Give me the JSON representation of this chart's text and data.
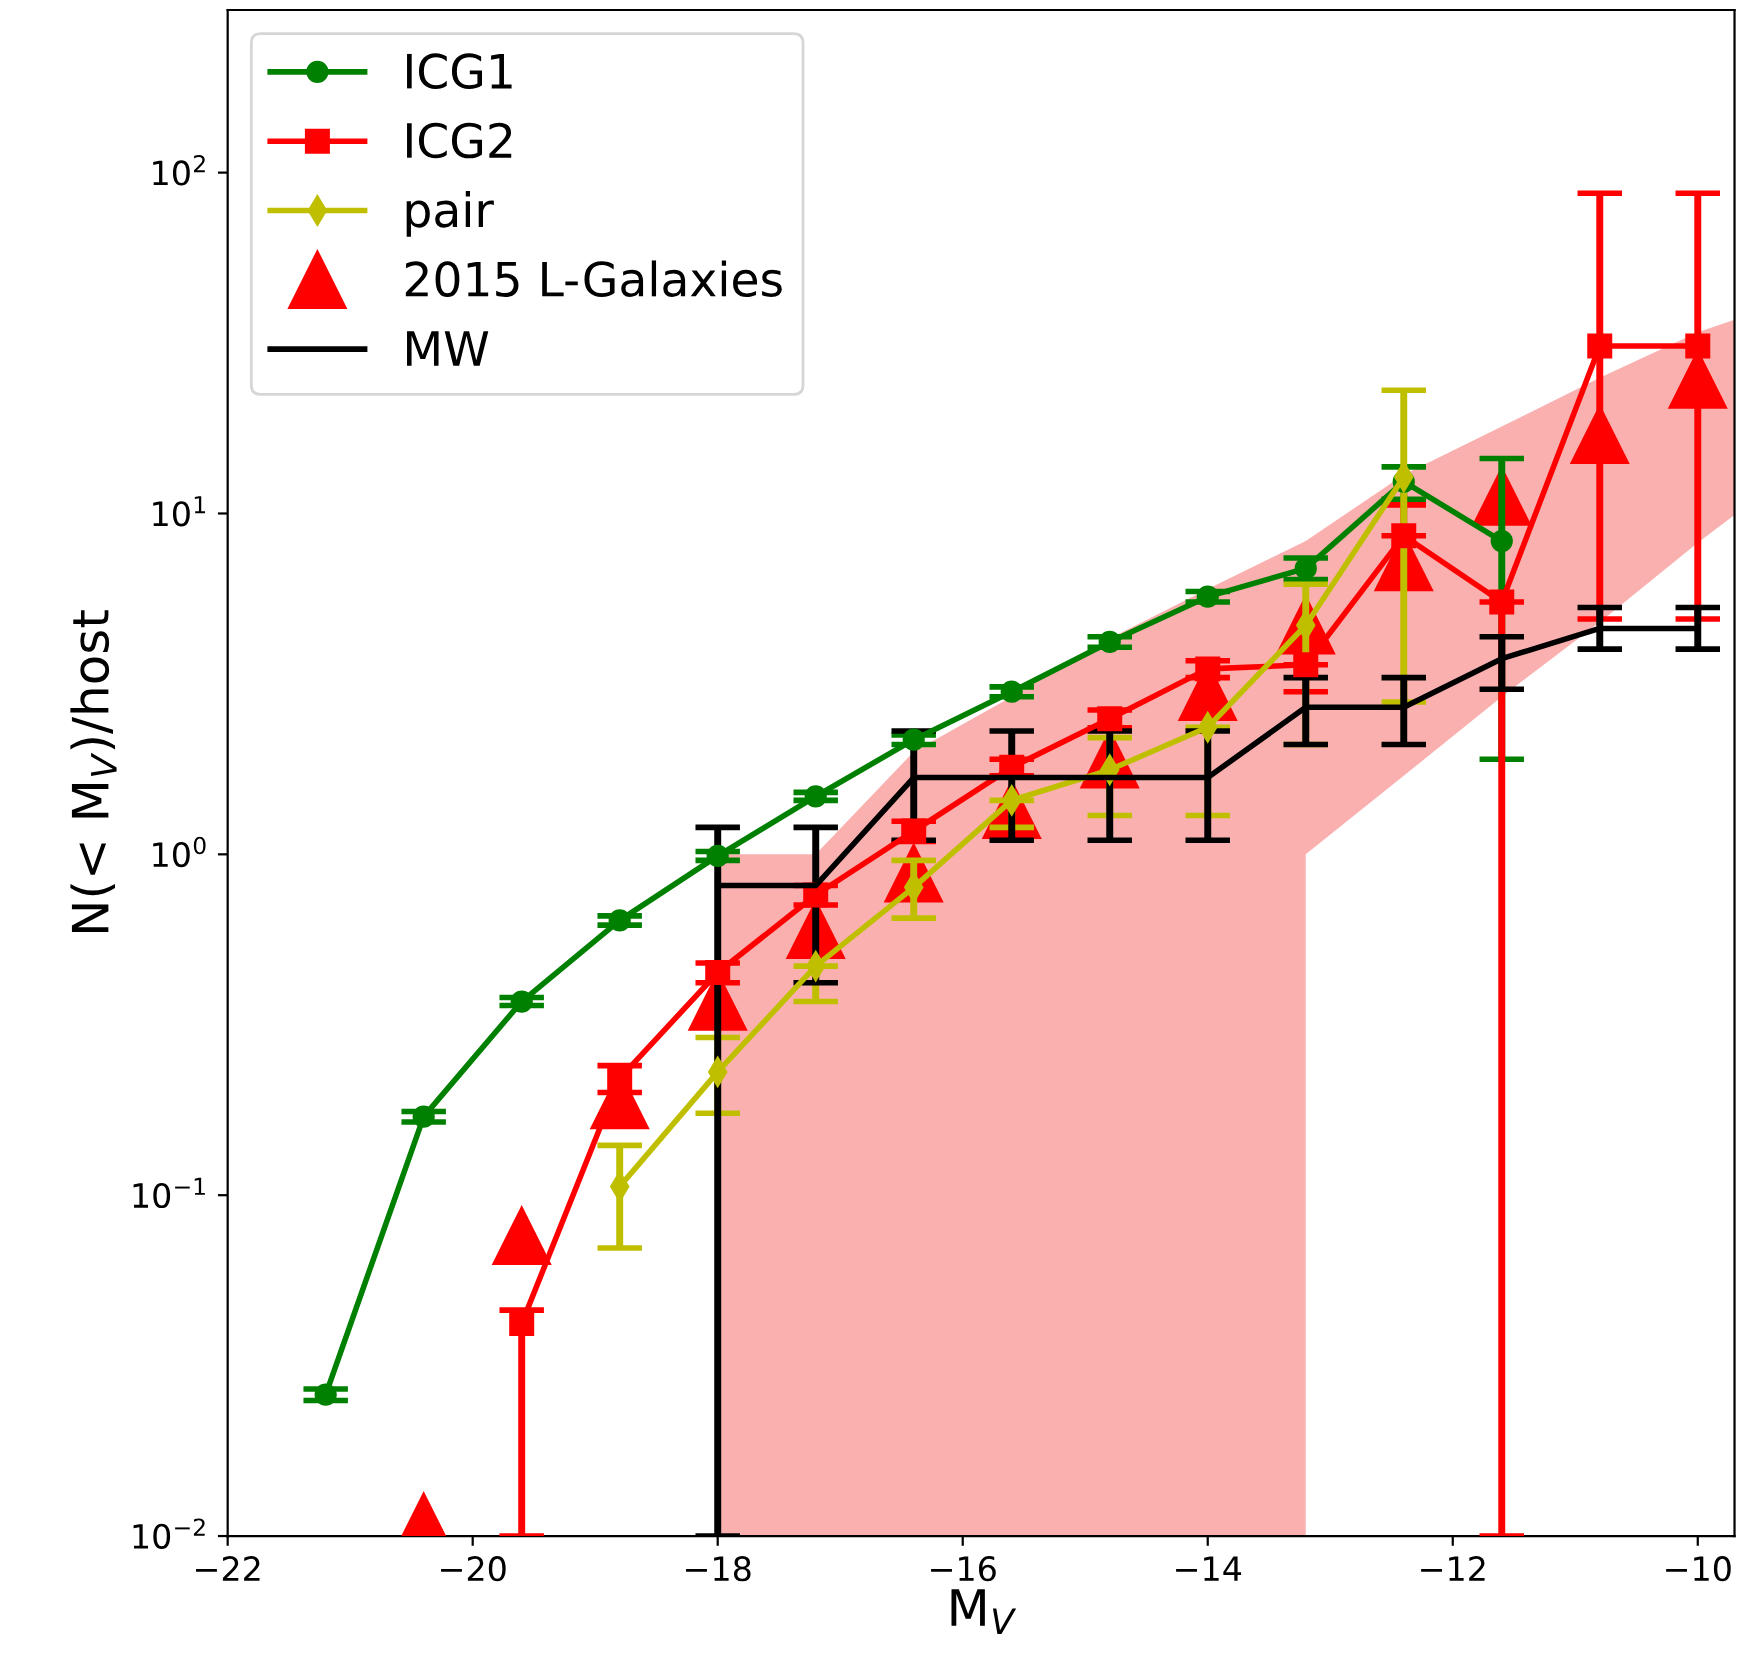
{
  "chart_data": {
    "type": "line",
    "xlabel": "M$_{V}$",
    "ylabel": "N(< M$_{V}$)/host",
    "log": "y",
    "xlim": [
      -22,
      -9.7
    ],
    "ylim": [
      0.01,
      300
    ],
    "xticks": [
      {
        "value": -22,
        "label": "−22"
      },
      {
        "value": -20,
        "label": "−20"
      },
      {
        "value": -18,
        "label": "−18"
      },
      {
        "value": -16,
        "label": "−16"
      },
      {
        "value": -14,
        "label": "−14"
      },
      {
        "value": -12,
        "label": "−12"
      },
      {
        "value": -10,
        "label": "−10"
      }
    ],
    "yticks": [
      {
        "value": 0.01,
        "label": "10$^{−2}$"
      },
      {
        "value": 0.1,
        "label": "10$^{−1}$"
      },
      {
        "value": 1,
        "label": "10$^{0}$"
      },
      {
        "value": 10,
        "label": "10$^{1}$"
      },
      {
        "value": 100,
        "label": "10$^{2}$"
      }
    ],
    "grid": false,
    "legend": "top left",
    "line_style": "solid",
    "series": [
      {
        "type": "area",
        "color": "#fbb0b0",
        "x": [
          -18,
          -17.2,
          -16.4,
          -15.6,
          -14.8,
          -14,
          -13.2,
          -13.2,
          -12.4,
          -11.6,
          -10.8,
          -10,
          -9.7
        ],
        "values": [
          null,
          null,
          null,
          null,
          null,
          null,
          null,
          null,
          null,
          null,
          null,
          null,
          null
        ],
        "lower": [
          0.01,
          0.01,
          0.01,
          0.01,
          0.01,
          0.01,
          0.01,
          1.0,
          1.7,
          2.9,
          4.8,
          8.2,
          9.9
        ],
        "upper": [
          1.0,
          1.0,
          2.0,
          2.9,
          4.3,
          6.0,
          8.3,
          8.3,
          13,
          18,
          25,
          34,
          37
        ]
      },
      {
        "name": "ICG1",
        "type": "line",
        "marker": "circle",
        "color": "#008000",
        "x": [
          -21.2,
          -20.4,
          -19.6,
          -18.8,
          -18,
          -17.2,
          -16.4,
          -15.6,
          -14.8,
          -14,
          -13.2,
          -12.4,
          -11.6
        ],
        "values": [
          0.026,
          0.17,
          0.37,
          0.64,
          0.99,
          1.48,
          2.17,
          3.0,
          4.2,
          5.7,
          6.9,
          12.4,
          8.3
        ],
        "errors": [
          0.001,
          0.006,
          0.01,
          0.02,
          0.03,
          0.04,
          0.07,
          0.1,
          0.15,
          0.2,
          0.5,
          [
            11,
            13.7
          ],
          [
            1.9,
            14.5
          ]
        ]
      },
      {
        "name": "ICG2",
        "type": "line",
        "marker": "square",
        "color": "#ff0000",
        "x": [
          -19.6,
          -18.8,
          -18,
          -17.2,
          -16.4,
          -15.6,
          -14.8,
          -14,
          -13.2,
          -12.4,
          -11.6,
          -10.8,
          -10
        ],
        "values": [
          0.042,
          0.22,
          0.45,
          0.76,
          1.17,
          1.8,
          2.5,
          3.5,
          3.6,
          8.6,
          5.5,
          31,
          31
        ],
        "errors": [
          [
            0.01,
            0.046
          ],
          0.02,
          0.03,
          0.05,
          0.08,
          0.1,
          0.15,
          0.2,
          [
            3.0,
            3.6
          ],
          [
            8.6,
            10.6
          ],
          [
            0.01,
            5.5
          ],
          [
            4.9,
            87
          ],
          [
            4.9,
            87
          ]
        ]
      },
      {
        "name": "pair",
        "type": "line",
        "marker": "diamond",
        "color": "#bfbf00",
        "x": [
          -18.8,
          -18,
          -17.2,
          -16.4,
          -15.6,
          -14.8,
          -14,
          -13.2,
          -12.4
        ],
        "values": [
          0.106,
          0.23,
          0.47,
          0.8,
          1.44,
          1.77,
          2.36,
          4.7,
          12.8
        ],
        "errors": [
          [
            0.07,
            0.14
          ],
          [
            0.174,
            0.29
          ],
          [
            0.37,
            0.47
          ],
          [
            0.65,
            0.96
          ],
          [
            1.2,
            1.44
          ],
          [
            1.3,
            2.2
          ],
          [
            1.3,
            2.36
          ],
          [
            2.1,
            6.2
          ],
          [
            2.8,
            23
          ]
        ]
      },
      {
        "name": "2015 L-Galaxies",
        "type": "scatter",
        "marker": "triangle",
        "color": "#ff0000",
        "x": [
          -20.4,
          -19.6,
          -18.8,
          -18,
          -17.2,
          -16.4,
          -15.6,
          -14.8,
          -14,
          -13.2,
          -12.4,
          -11.6,
          -10.8,
          -10
        ],
        "values": [
          0.011,
          0.076,
          0.19,
          0.37,
          0.6,
          0.88,
          1.35,
          1.9,
          3.0,
          4.7,
          7.2,
          11.2,
          17,
          24.7
        ]
      },
      {
        "name": "MW",
        "type": "line",
        "marker": "none",
        "color": "#000000",
        "x": [
          -18,
          -17.2,
          -16.4,
          -15.6,
          -14.8,
          -14,
          -13.2,
          -12.4,
          -11.6,
          -10.8,
          -10
        ],
        "values": [
          0.81,
          0.81,
          1.68,
          1.68,
          1.68,
          1.68,
          2.7,
          2.7,
          3.75,
          4.6,
          4.6
        ],
        "errors": [
          [
            0.01,
            1.2
          ],
          [
            0.42,
            1.2
          ],
          [
            1.1,
            2.3
          ],
          [
            1.1,
            2.3
          ],
          [
            1.1,
            2.3
          ],
          [
            1.1,
            2.3
          ],
          [
            2.1,
            3.3
          ],
          [
            2.1,
            3.3
          ],
          [
            3.05,
            4.35
          ],
          [
            4.0,
            5.3
          ],
          [
            4.0,
            5.3
          ]
        ]
      }
    ]
  }
}
